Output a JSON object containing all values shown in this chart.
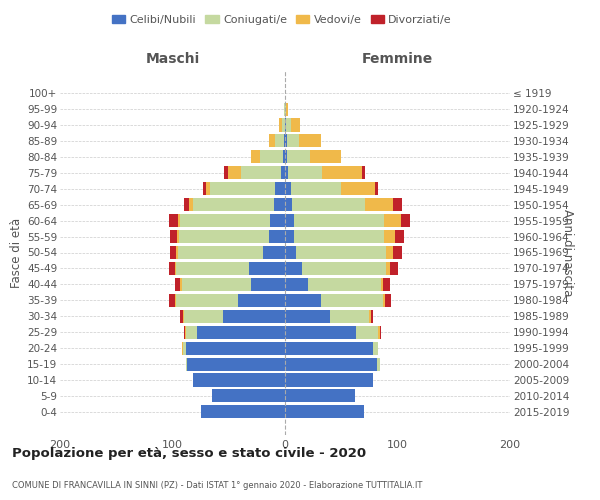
{
  "age_groups": [
    "0-4",
    "5-9",
    "10-14",
    "15-19",
    "20-24",
    "25-29",
    "30-34",
    "35-39",
    "40-44",
    "45-49",
    "50-54",
    "55-59",
    "60-64",
    "65-69",
    "70-74",
    "75-79",
    "80-84",
    "85-89",
    "90-94",
    "95-99",
    "100+"
  ],
  "birth_years": [
    "2015-2019",
    "2010-2014",
    "2005-2009",
    "2000-2004",
    "1995-1999",
    "1990-1994",
    "1985-1989",
    "1980-1984",
    "1975-1979",
    "1970-1974",
    "1965-1969",
    "1960-1964",
    "1955-1959",
    "1950-1954",
    "1945-1949",
    "1940-1944",
    "1935-1939",
    "1930-1934",
    "1925-1929",
    "1920-1924",
    "≤ 1919"
  ],
  "male": {
    "celibi": [
      75,
      65,
      82,
      87,
      88,
      78,
      55,
      42,
      30,
      32,
      20,
      14,
      13,
      10,
      9,
      4,
      2,
      1,
      0,
      0,
      0
    ],
    "coniugati": [
      0,
      0,
      0,
      1,
      3,
      10,
      35,
      55,
      62,
      65,
      75,
      80,
      80,
      72,
      58,
      35,
      20,
      8,
      3,
      1,
      0
    ],
    "vedovi": [
      0,
      0,
      0,
      0,
      1,
      1,
      1,
      1,
      1,
      1,
      2,
      2,
      2,
      3,
      3,
      12,
      8,
      5,
      2,
      0,
      0
    ],
    "divorziati": [
      0,
      0,
      0,
      0,
      0,
      1,
      2,
      5,
      5,
      5,
      5,
      6,
      8,
      5,
      3,
      3,
      0,
      0,
      0,
      0,
      0
    ]
  },
  "female": {
    "nubili": [
      70,
      62,
      78,
      82,
      78,
      63,
      40,
      32,
      20,
      15,
      10,
      8,
      8,
      6,
      5,
      3,
      2,
      2,
      1,
      0,
      0
    ],
    "coniugate": [
      0,
      0,
      0,
      2,
      5,
      20,
      35,
      55,
      65,
      75,
      80,
      80,
      80,
      65,
      45,
      30,
      20,
      10,
      4,
      1,
      0
    ],
    "vedove": [
      0,
      0,
      0,
      0,
      0,
      1,
      1,
      2,
      2,
      3,
      6,
      10,
      15,
      25,
      30,
      35,
      28,
      20,
      8,
      2,
      0
    ],
    "divorziate": [
      0,
      0,
      0,
      0,
      0,
      1,
      2,
      5,
      6,
      7,
      8,
      8,
      8,
      8,
      3,
      3,
      0,
      0,
      0,
      0,
      0
    ]
  },
  "color_celibi": "#4472c4",
  "color_coniugati": "#c5d9a0",
  "color_vedovi": "#f0b94a",
  "color_divorziati": "#c0212a",
  "title": "Popolazione per età, sesso e stato civile - 2020",
  "subtitle": "COMUNE DI FRANCAVILLA IN SINNI (PZ) - Dati ISTAT 1° gennaio 2020 - Elaborazione TUTTITALIA.IT",
  "xlabel_left": "Maschi",
  "xlabel_right": "Femmine",
  "ylabel_left": "Fasce di età",
  "ylabel_right": "Anni di nascita",
  "xlim": 200,
  "bg_color": "#ffffff",
  "grid_color": "#cccccc"
}
